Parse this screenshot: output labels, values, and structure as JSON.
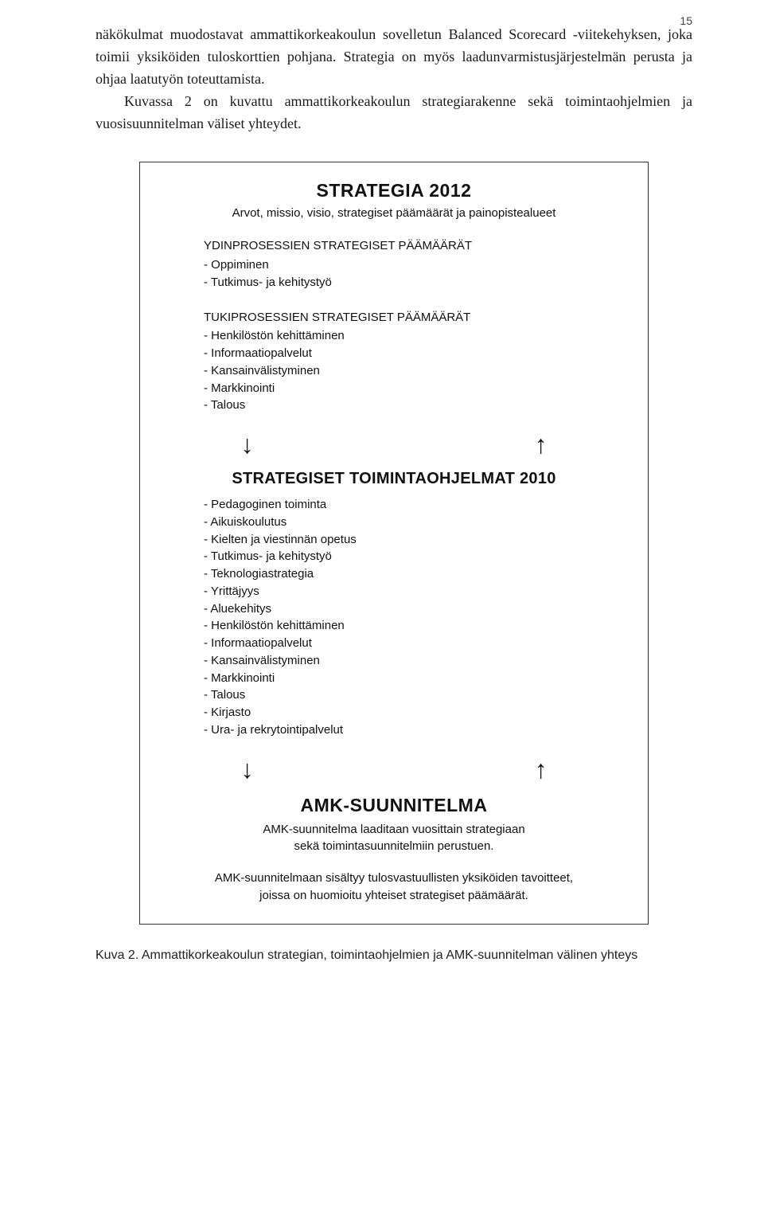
{
  "page_number": "15",
  "intro": {
    "p1": "näkökulmat muodostavat ammattikorkeakoulun sovelletun Balanced Scorecard -viitekehyksen, joka toimii yksiköiden tuloskorttien pohjana. Strategia on myös laadunvarmistusjärjestelmän perusta ja ohjaa laatutyön toteuttamista.",
    "p2": "Kuvassa 2 on kuvattu ammattikorkeakoulun strategiarakenne sekä toimintaohjelmien ja vuosisuunnitelman väliset yhteydet."
  },
  "diagram": {
    "section1": {
      "title": "STRATEGIA 2012",
      "subtitle": "Arvot, missio, visio, strategiset päämäärät ja painopistealueet",
      "ydin": {
        "heading": "YDINPROSESSIEN STRATEGISET PÄÄMÄÄRÄT",
        "items": [
          "- Oppiminen",
          "- Tutkimus- ja kehitystyö"
        ]
      },
      "tuki": {
        "heading": "TUKIPROSESSIEN STRATEGISET PÄÄMÄÄRÄT",
        "items": [
          "- Henkilöstön kehittäminen",
          "- Informaatiopalvelut",
          "- Kansainvälistyminen",
          "- Markkinointi",
          "- Talous"
        ]
      }
    },
    "arrows": {
      "down": "↓",
      "up": "↑"
    },
    "section2": {
      "title": "STRATEGISET TOIMINTAOHJELMAT 2010",
      "items": [
        "- Pedagoginen toiminta",
        "- Aikuiskoulutus",
        "- Kielten ja viestinnän opetus",
        "- Tutkimus- ja kehitystyö",
        "- Teknologiastrategia",
        "- Yrittäjyys",
        "- Aluekehitys",
        "- Henkilöstön kehittäminen",
        "- Informaatiopalvelut",
        "- Kansainvälistyminen",
        "- Markkinointi",
        "- Talous",
        "- Kirjasto",
        "- Ura- ja rekrytointipalvelut"
      ]
    },
    "section3": {
      "title": "AMK-SUUNNITELMA",
      "sub1": "AMK-suunnitelma laaditaan vuosittain strategiaan",
      "sub2": "sekä toimintasuunnitelmiin perustuen.",
      "note1": "AMK-suunnitelmaan sisältyy tulosvastuullisten yksiköiden tavoitteet,",
      "note2": "joissa on huomioitu yhteiset strategiset päämäärät."
    }
  },
  "caption": "Kuva 2. Ammattikorkeakoulun strategian, toimintaohjelmien ja AMK-suunnitelman välinen yhteys"
}
